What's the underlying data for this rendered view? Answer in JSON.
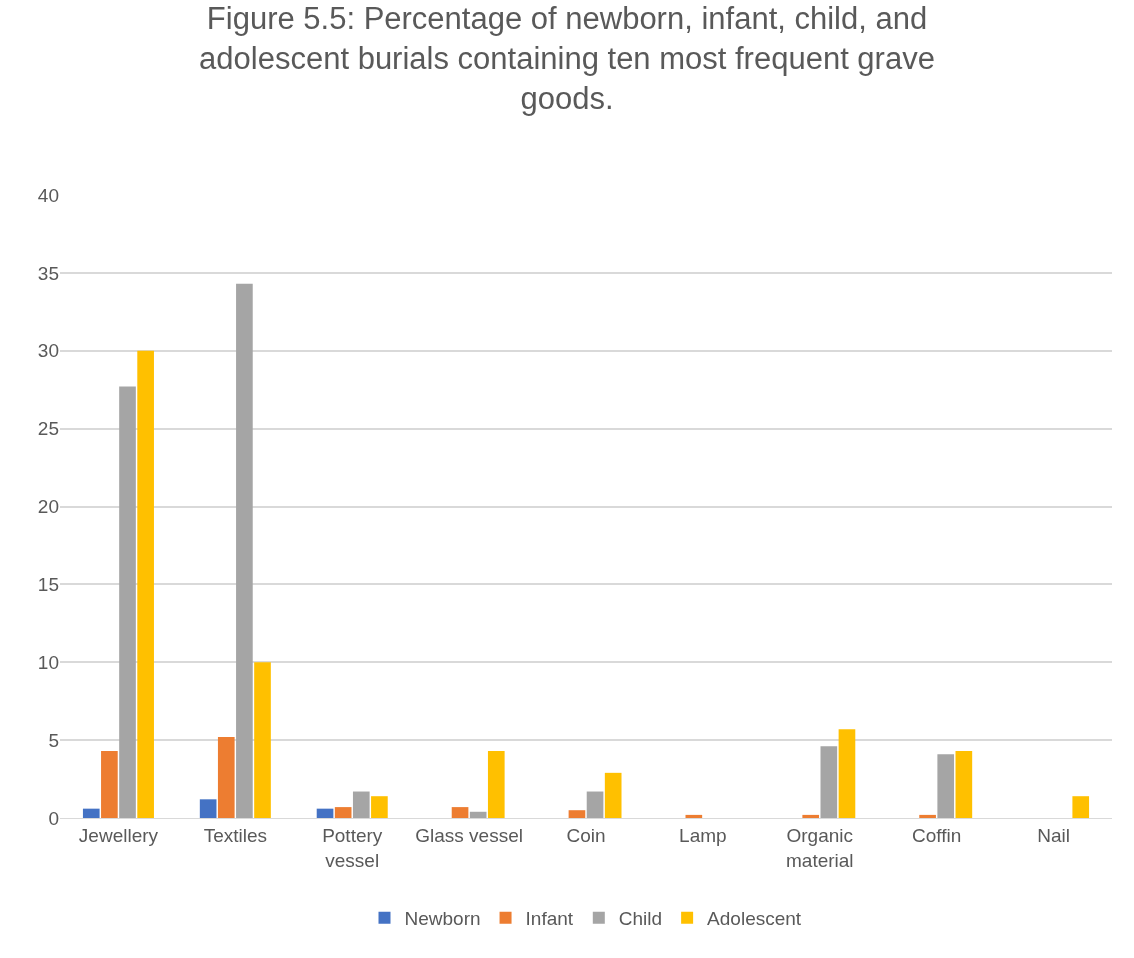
{
  "chart_data": {
    "type": "bar",
    "title": "Figure 5.5: Percentage of newborn, infant, child, and adolescent burials containing ten most frequent grave goods.",
    "categories": [
      "Jewellery",
      "Textiles",
      "Pottery vessel",
      "Glass vessel",
      "Coin",
      "Lamp",
      "Organic material",
      "Coffin",
      "Nail"
    ],
    "series": [
      {
        "name": "Newborn",
        "color": "#4472c4",
        "values": [
          0.6,
          1.2,
          0.6,
          0,
          0,
          0,
          0,
          0,
          0
        ]
      },
      {
        "name": "Infant",
        "color": "#ed7d31",
        "values": [
          4.3,
          5.2,
          0.7,
          0.7,
          0.5,
          0.2,
          0.2,
          0.2,
          0
        ]
      },
      {
        "name": "Child",
        "color": "#a5a5a5",
        "values": [
          27.7,
          34.3,
          1.7,
          0.4,
          1.7,
          0,
          4.6,
          4.1,
          0
        ]
      },
      {
        "name": "Adolescent",
        "color": "#ffc000",
        "values": [
          30,
          10,
          1.4,
          4.3,
          2.9,
          0,
          5.7,
          4.3,
          1.4
        ]
      }
    ],
    "ylim": [
      0,
      40
    ],
    "yticks": [
      0,
      5,
      10,
      15,
      20,
      25,
      30,
      35,
      40
    ],
    "grid": "y",
    "legend": "bottom"
  }
}
